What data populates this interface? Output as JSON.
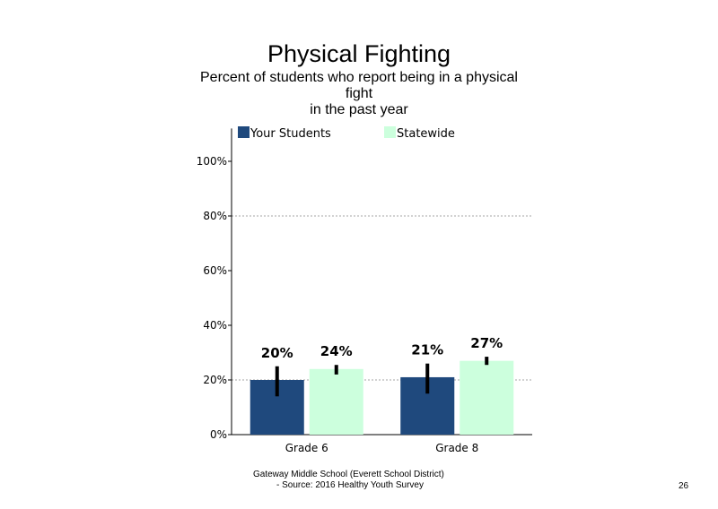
{
  "chart_data": {
    "type": "bar",
    "title": "Physical Fighting",
    "subtitle_lines": [
      "Percent of students  who report being in a physical",
      "fight",
      "in the past year"
    ],
    "categories": [
      "Grade 6",
      "Grade 8"
    ],
    "series": [
      {
        "name": "Your Students",
        "color": "#1f497d",
        "values": [
          20,
          21
        ],
        "labels": [
          "20%",
          "21%"
        ],
        "error_low": [
          14,
          15
        ],
        "error_high": [
          25,
          26
        ]
      },
      {
        "name": "Statewide",
        "color": "#ccffdd",
        "values": [
          24,
          27
        ],
        "labels": [
          "24%",
          "27%"
        ],
        "error_low": [
          22,
          25.5
        ],
        "error_high": [
          25.5,
          28.5
        ]
      }
    ],
    "yticks": [
      0,
      20,
      40,
      60,
      80,
      100
    ],
    "ytick_labels": [
      "0%",
      "20%",
      "40%",
      "60%",
      "80%",
      "100%"
    ],
    "ylim": [
      0,
      112
    ],
    "gridlines": [
      20,
      80
    ],
    "legend_position": "top",
    "xlabel": "",
    "ylabel": ""
  },
  "footer": {
    "line1": "Gateway Middle  School  (Everett School District)",
    "line2": "- Source: 2016 Healthy  Youth Survey"
  },
  "page_number": "26"
}
